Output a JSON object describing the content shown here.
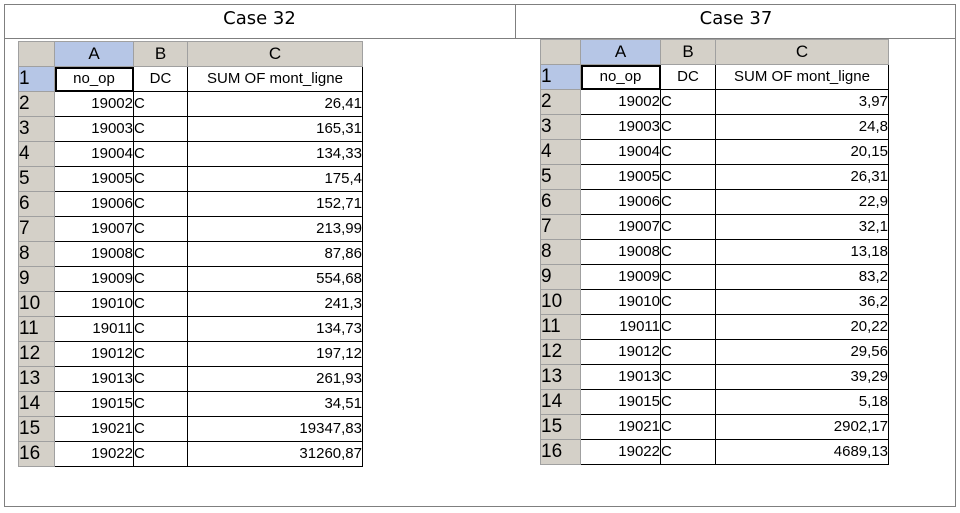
{
  "left": {
    "title": "Case 32",
    "columns": [
      "A",
      "B",
      "C"
    ],
    "header_row": {
      "num": "1",
      "a": "no_op",
      "b": "DC",
      "c": "SUM OF mont_ligne"
    },
    "rows": [
      {
        "num": "2",
        "a": "19002",
        "b": "C",
        "c": "26,41"
      },
      {
        "num": "3",
        "a": "19003",
        "b": "C",
        "c": "165,31"
      },
      {
        "num": "4",
        "a": "19004",
        "b": "C",
        "c": "134,33"
      },
      {
        "num": "5",
        "a": "19005",
        "b": "C",
        "c": "175,4"
      },
      {
        "num": "6",
        "a": "19006",
        "b": "C",
        "c": "152,71"
      },
      {
        "num": "7",
        "a": "19007",
        "b": "C",
        "c": "213,99"
      },
      {
        "num": "8",
        "a": "19008",
        "b": "C",
        "c": "87,86"
      },
      {
        "num": "9",
        "a": "19009",
        "b": "C",
        "c": "554,68"
      },
      {
        "num": "10",
        "a": "19010",
        "b": "C",
        "c": "241,3"
      },
      {
        "num": "11",
        "a": "19011",
        "b": "C",
        "c": "134,73"
      },
      {
        "num": "12",
        "a": "19012",
        "b": "C",
        "c": "197,12"
      },
      {
        "num": "13",
        "a": "19013",
        "b": "C",
        "c": "261,93"
      },
      {
        "num": "14",
        "a": "19015",
        "b": "C",
        "c": "34,51"
      },
      {
        "num": "15",
        "a": "19021",
        "b": "C",
        "c": "19347,83"
      },
      {
        "num": "16",
        "a": "19022",
        "b": "C",
        "c": "31260,87"
      }
    ]
  },
  "right": {
    "title": "Case 37",
    "columns": [
      "A",
      "B",
      "C"
    ],
    "header_row": {
      "num": "1",
      "a": "no_op",
      "b": "DC",
      "c": "SUM OF mont_ligne"
    },
    "rows": [
      {
        "num": "2",
        "a": "19002",
        "b": "C",
        "c": "3,97"
      },
      {
        "num": "3",
        "a": "19003",
        "b": "C",
        "c": "24,8"
      },
      {
        "num": "4",
        "a": "19004",
        "b": "C",
        "c": "20,15"
      },
      {
        "num": "5",
        "a": "19005",
        "b": "C",
        "c": "26,31"
      },
      {
        "num": "6",
        "a": "19006",
        "b": "C",
        "c": "22,9"
      },
      {
        "num": "7",
        "a": "19007",
        "b": "C",
        "c": "32,1"
      },
      {
        "num": "8",
        "a": "19008",
        "b": "C",
        "c": "13,18"
      },
      {
        "num": "9",
        "a": "19009",
        "b": "C",
        "c": "83,2"
      },
      {
        "num": "10",
        "a": "19010",
        "b": "C",
        "c": "36,2"
      },
      {
        "num": "11",
        "a": "19011",
        "b": "C",
        "c": "20,22"
      },
      {
        "num": "12",
        "a": "19012",
        "b": "C",
        "c": "29,56"
      },
      {
        "num": "13",
        "a": "19013",
        "b": "C",
        "c": "39,29"
      },
      {
        "num": "14",
        "a": "19015",
        "b": "C",
        "c": "5,18"
      },
      {
        "num": "15",
        "a": "19021",
        "b": "C",
        "c": "2902,17"
      },
      {
        "num": "16",
        "a": "19022",
        "b": "C",
        "c": "4689,13"
      }
    ]
  }
}
